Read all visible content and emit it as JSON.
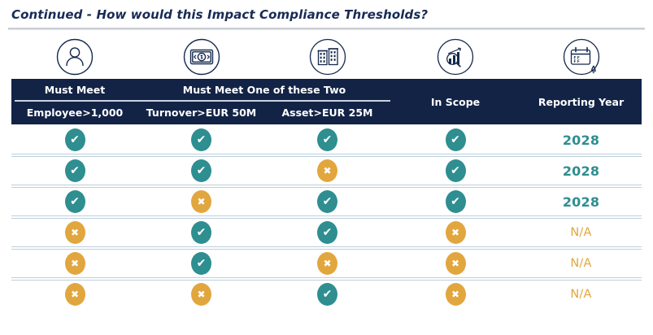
{
  "title": "Continued - How would this Impact Compliance Thresholds?",
  "colors": {
    "header_navy": "#122346",
    "title_navy": "#182B55",
    "teal": "#2E8E90",
    "gold": "#E2A63F",
    "row_divider": "#BCCFDC",
    "header_text": "#FFFFFF"
  },
  "icons": [
    {
      "name": "person-icon"
    },
    {
      "name": "banknote-icon"
    },
    {
      "name": "buildings-icon"
    },
    {
      "name": "chart-magnifier-icon"
    },
    {
      "name": "calendar-bell-icon"
    }
  ],
  "table": {
    "header": {
      "must_meet": "Must Meet",
      "must_meet_one_of_two": "Must Meet One of these Two",
      "employee": "Employee>1,000",
      "turnover": "Turnover>EUR 50M",
      "asset": "Asset>EUR 25M",
      "in_scope": "In Scope",
      "reporting_year": "Reporting Year"
    },
    "glyphs": {
      "check": "✔",
      "cross": "✖"
    },
    "rows": [
      {
        "employee": "check",
        "turnover": "check",
        "asset": "check",
        "in_scope": "check",
        "reporting_year": "2028"
      },
      {
        "employee": "check",
        "turnover": "check",
        "asset": "cross",
        "in_scope": "check",
        "reporting_year": "2028"
      },
      {
        "employee": "check",
        "turnover": "cross",
        "asset": "check",
        "in_scope": "check",
        "reporting_year": "2028"
      },
      {
        "employee": "cross",
        "turnover": "check",
        "asset": "check",
        "in_scope": "cross",
        "reporting_year": "N/A"
      },
      {
        "employee": "cross",
        "turnover": "check",
        "asset": "cross",
        "in_scope": "cross",
        "reporting_year": "N/A"
      },
      {
        "employee": "cross",
        "turnover": "cross",
        "asset": "check",
        "in_scope": "cross",
        "reporting_year": "N/A"
      }
    ]
  }
}
